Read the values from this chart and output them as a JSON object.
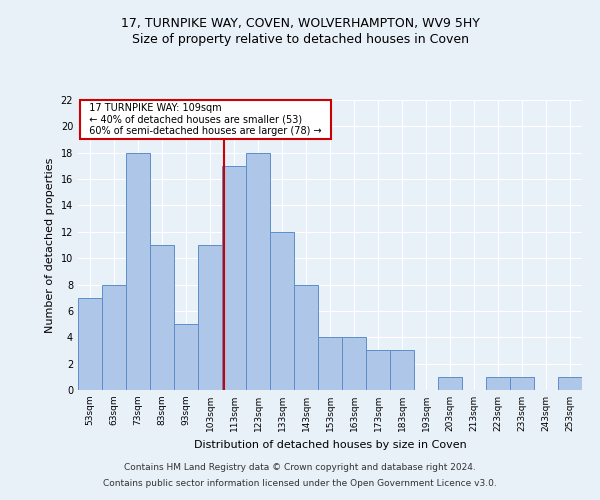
{
  "title1": "17, TURNPIKE WAY, COVEN, WOLVERHAMPTON, WV9 5HY",
  "title2": "Size of property relative to detached houses in Coven",
  "xlabel": "Distribution of detached houses by size in Coven",
  "ylabel": "Number of detached properties",
  "categories": [
    "53sqm",
    "63sqm",
    "73sqm",
    "83sqm",
    "93sqm",
    "103sqm",
    "113sqm",
    "123sqm",
    "133sqm",
    "143sqm",
    "153sqm",
    "163sqm",
    "173sqm",
    "183sqm",
    "193sqm",
    "203sqm",
    "213sqm",
    "223sqm",
    "233sqm",
    "243sqm",
    "253sqm"
  ],
  "values": [
    7,
    8,
    18,
    11,
    5,
    11,
    17,
    18,
    12,
    8,
    4,
    4,
    3,
    3,
    0,
    1,
    0,
    1,
    1,
    0,
    1
  ],
  "bar_color": "#aec6e8",
  "bar_edge_color": "#5b8fc9",
  "property_size": 109,
  "vline_color": "#cc0000",
  "annotation_text": "  17 TURNPIKE WAY: 109sqm  \n  ← 40% of detached houses are smaller (53)  \n  60% of semi-detached houses are larger (78) →  ",
  "annotation_box_color": "#ffffff",
  "annotation_box_edge": "#cc0000",
  "ylim": [
    0,
    22
  ],
  "yticks": [
    0,
    2,
    4,
    6,
    8,
    10,
    12,
    14,
    16,
    18,
    20,
    22
  ],
  "footnote1": "Contains HM Land Registry data © Crown copyright and database right 2024.",
  "footnote2": "Contains public sector information licensed under the Open Government Licence v3.0.",
  "background_color": "#e8f0f8",
  "plot_background": "#e8f0f8",
  "grid_color": "#ffffff",
  "title1_fontsize": 9,
  "title2_fontsize": 9,
  "xlabel_fontsize": 8,
  "ylabel_fontsize": 8,
  "footnote_fontsize": 6.5
}
